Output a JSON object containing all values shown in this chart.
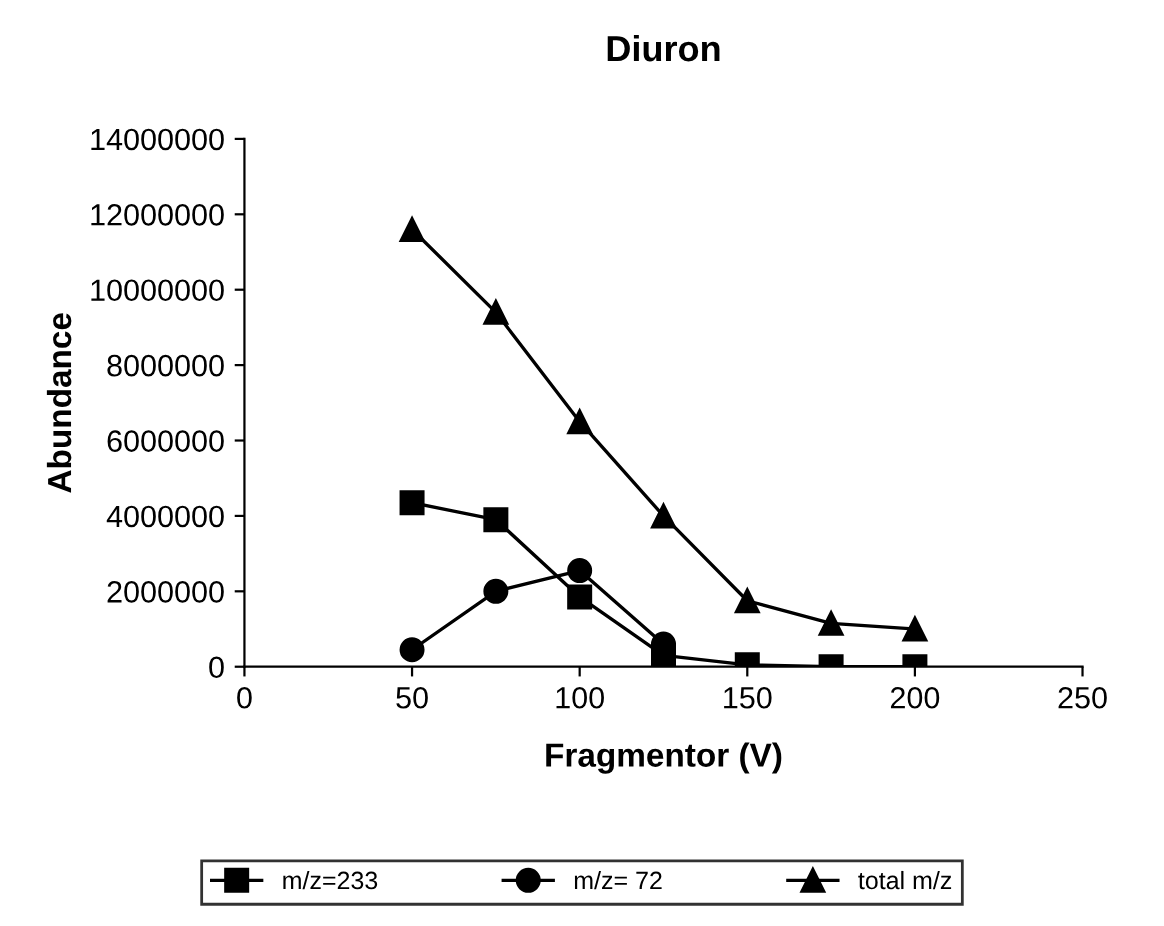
{
  "chart_data": {
    "type": "line",
    "title": "Diuron",
    "xlabel": "Fragmentor (V)",
    "ylabel": "Abundance",
    "x": [
      50,
      75,
      100,
      125,
      150,
      175,
      200
    ],
    "series": [
      {
        "name": "m/z=233",
        "color": "#000000",
        "marker": "square",
        "values": [
          4350000,
          3900000,
          1850000,
          300000,
          50000,
          0,
          0
        ]
      },
      {
        "name": "m/z= 72",
        "color": "#000000",
        "marker": "circle",
        "values": [
          450000,
          2000000,
          2550000,
          600000,
          null,
          null,
          null
        ]
      },
      {
        "name": "total m/z",
        "color": "#000000",
        "marker": "triangle",
        "values": [
          11600000,
          9400000,
          6500000,
          4000000,
          1750000,
          1150000,
          1000000
        ]
      }
    ],
    "xlim": [
      0,
      250
    ],
    "xticks": [
      0,
      50,
      100,
      150,
      200,
      250
    ],
    "ylim": [
      0,
      14000000
    ],
    "yticks": [
      0,
      2000000,
      4000000,
      6000000,
      8000000,
      10000000,
      12000000,
      14000000
    ],
    "grid": false,
    "legend": "bottom",
    "line_style": "solid"
  }
}
